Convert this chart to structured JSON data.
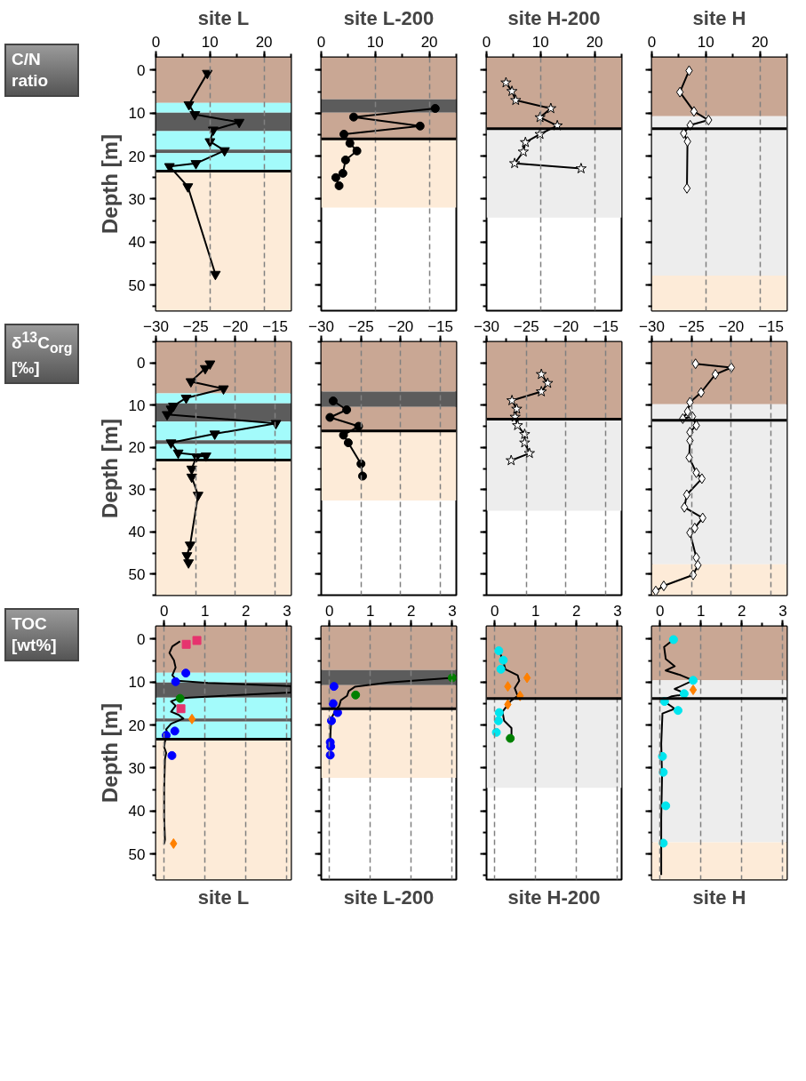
{
  "chart_data": [
    {
      "type": "line",
      "title": "site L",
      "ylabel": "Depth [m]",
      "annotations": [
        "C/N ratio"
      ],
      "xlim": [
        0,
        25
      ],
      "ylim": [
        56,
        -3
      ],
      "xticks": [
        0,
        10,
        20
      ],
      "yticks": [
        0,
        10,
        20,
        30,
        40,
        50
      ],
      "grid": "x",
      "bands": [
        {
          "axis": "y",
          "from": -3,
          "to": 7.6,
          "color": "#c9a794"
        },
        {
          "axis": "y",
          "from": 7.6,
          "to": 9.9,
          "color": "#a3fbfb"
        },
        {
          "axis": "y",
          "from": 9.9,
          "to": 14.2,
          "color": "#5c5c5c"
        },
        {
          "axis": "y",
          "from": 14.2,
          "to": 18.5,
          "color": "#a3fbfb"
        },
        {
          "axis": "y",
          "from": 18.5,
          "to": 19.3,
          "color": "#5c5c5c"
        },
        {
          "axis": "y",
          "from": 19.3,
          "to": 23.5,
          "color": "#a3fbfb"
        },
        {
          "axis": "y",
          "from": 23.5,
          "to": 56,
          "color": "#fdebd8"
        }
      ],
      "ref_lines": [
        {
          "axis": "y",
          "value": 23.5,
          "color": "#000000"
        }
      ],
      "series": [
        {
          "color": "#000000",
          "marker": "triangle",
          "x": [
            9.5,
            6.1,
            7.2,
            15.4,
            10.6,
            10.0,
            12.7,
            7.4,
            2.5,
            5.9,
            11.0
          ],
          "values": [
            0.7,
            8.0,
            10.3,
            12.1,
            13.9,
            16.6,
            18.7,
            21.7,
            22.4,
            27.1,
            47.5
          ]
        }
      ]
    },
    {
      "type": "line",
      "title": "site L-200",
      "xlim": [
        0,
        25
      ],
      "ylim": [
        56,
        -3
      ],
      "xticks": [
        0,
        10,
        20
      ],
      "yticks": [
        0,
        10,
        20,
        30,
        40,
        50
      ],
      "grid": "x",
      "tick_labels": "x",
      "bands": [
        {
          "axis": "y",
          "from": -3,
          "to": 6.8,
          "color": "#c9a794"
        },
        {
          "axis": "y",
          "from": 6.8,
          "to": 9.9,
          "color": "#5c5c5c"
        },
        {
          "axis": "y",
          "from": 9.9,
          "to": 16.0,
          "color": "#c9a794"
        },
        {
          "axis": "y",
          "from": 16.0,
          "to": 32,
          "color": "#fdebd8"
        }
      ],
      "ref_lines": [
        {
          "axis": "y",
          "value": 16.0,
          "color": "#000000"
        }
      ],
      "series": [
        {
          "color": "#000000",
          "marker": "circle",
          "x": [
            21.1,
            6.0,
            18.3,
            4.2,
            5.3,
            6.6,
            4.5,
            4.0,
            2.7,
            3.3
          ],
          "values": [
            8.9,
            10.9,
            13.0,
            14.9,
            17.0,
            18.8,
            20.9,
            24.0,
            25.0,
            26.9
          ]
        }
      ]
    },
    {
      "type": "line",
      "title": "site H-200",
      "xlim": [
        0,
        25
      ],
      "ylim": [
        56,
        -3
      ],
      "xticks": [
        0,
        10,
        20
      ],
      "yticks": [
        0,
        10,
        20,
        30,
        40,
        50
      ],
      "grid": "x",
      "tick_labels": "x",
      "bands": [
        {
          "axis": "y",
          "from": -3,
          "to": 13.6,
          "color": "#c9a794"
        },
        {
          "axis": "y",
          "from": 13.6,
          "to": 34.3,
          "color": "#ededed"
        }
      ],
      "ref_lines": [
        {
          "axis": "y",
          "value": 13.6,
          "color": "#000000"
        }
      ],
      "series": [
        {
          "color": "#000000",
          "marker": "star",
          "x": [
            3.6,
            4.7,
            5.4,
            11.9,
            9.9,
            13.1,
            9.9,
            7.2,
            6.8,
            5.2,
            17.5
          ],
          "values": [
            2.9,
            4.9,
            7.0,
            8.9,
            11.0,
            12.9,
            14.9,
            16.8,
            19.0,
            21.7,
            22.9
          ]
        }
      ]
    },
    {
      "type": "line",
      "title": "site H",
      "xlim": [
        0,
        25
      ],
      "ylim": [
        56,
        -3
      ],
      "xticks": [
        0,
        10,
        20
      ],
      "yticks": [
        0,
        10,
        20,
        30,
        40,
        50
      ],
      "grid": "x",
      "tick_labels": "x",
      "bands": [
        {
          "axis": "y",
          "from": -3,
          "to": 10.7,
          "color": "#c9a794"
        },
        {
          "axis": "y",
          "from": 10.7,
          "to": 47.8,
          "color": "#ededed"
        },
        {
          "axis": "y",
          "from": 47.8,
          "to": 56,
          "color": "#fdebd8"
        }
      ],
      "ref_lines": [
        {
          "axis": "y",
          "value": 13.6,
          "color": "#000000"
        }
      ],
      "series": [
        {
          "color": "#000000",
          "marker": "diamond",
          "x": [
            6.9,
            5.2,
            7.8,
            10.5,
            7.1,
            5.9,
            6.6,
            6.5
          ],
          "values": [
            0.1,
            5.1,
            9.6,
            11.6,
            12.8,
            14.7,
            16.6,
            27.5
          ]
        }
      ]
    },
    {
      "type": "line",
      "ylabel": "Depth [m]",
      "annotations": [
        "δ$^{13}$C$_{org}$ [‰]"
      ],
      "xlim": [
        -30,
        -13
      ],
      "ylim": [
        55,
        -5
      ],
      "xticks": [
        -30,
        -25,
        -20,
        -15
      ],
      "yticks": [
        0,
        10,
        20,
        30,
        40,
        50
      ],
      "grid": "x",
      "bands": [
        {
          "axis": "y",
          "from": -5,
          "to": 7.2,
          "color": "#c9a794"
        },
        {
          "axis": "y",
          "from": 7.2,
          "to": 9.6,
          "color": "#a3fbfb"
        },
        {
          "axis": "y",
          "from": 9.6,
          "to": 13.9,
          "color": "#5c5c5c"
        },
        {
          "axis": "y",
          "from": 13.9,
          "to": 18.3,
          "color": "#a3fbfb"
        },
        {
          "axis": "y",
          "from": 18.3,
          "to": 19.2,
          "color": "#5c5c5c"
        },
        {
          "axis": "y",
          "from": 19.2,
          "to": 23.0,
          "color": "#a3fbfb"
        },
        {
          "axis": "y",
          "from": 23.0,
          "to": 55,
          "color": "#fdebd8"
        }
      ],
      "ref_lines": [
        {
          "axis": "y",
          "value": 23.0,
          "color": "#000000"
        }
      ],
      "series": [
        {
          "color": "#000000",
          "marker": "triangle",
          "x": [
            -23.2,
            -23.8,
            -25.6,
            -21.5,
            -26.2,
            -27.8,
            -28.1,
            -28.6,
            -14.9,
            -22.6,
            -28.1,
            -27.2,
            -23.7,
            -24.9,
            -25.5,
            -25.5,
            -24.7,
            -25.7,
            -26.1,
            -25.9
          ],
          "values": [
            0.2,
            1.3,
            4.4,
            6.1,
            8.3,
            10.2,
            10.9,
            12.2,
            14.3,
            16.8,
            18.9,
            21.3,
            22.0,
            22.2,
            25.1,
            27.0,
            31.3,
            43.1,
            45.6,
            47.3
          ]
        }
      ]
    },
    {
      "type": "line",
      "xlim": [
        -30,
        -13
      ],
      "ylim": [
        55,
        -5
      ],
      "xticks": [
        -30,
        -25,
        -20,
        -15
      ],
      "yticks": [
        0,
        10,
        20,
        30,
        40,
        50
      ],
      "grid": "x",
      "tick_labels": "x",
      "bands": [
        {
          "axis": "y",
          "from": -5,
          "to": 6.8,
          "color": "#c9a794"
        },
        {
          "axis": "y",
          "from": 6.8,
          "to": 10.4,
          "color": "#5c5c5c"
        },
        {
          "axis": "y",
          "from": 10.4,
          "to": 16.1,
          "color": "#c9a794"
        },
        {
          "axis": "y",
          "from": 16.1,
          "to": 32.6,
          "color": "#fdebd8"
        }
      ],
      "ref_lines": [
        {
          "axis": "y",
          "value": 16.1,
          "color": "#000000"
        }
      ],
      "series": [
        {
          "color": "#000000",
          "marker": "circle",
          "x": [
            -28.5,
            -26.8,
            -28.9,
            -25.3,
            -27.2,
            -26.6,
            -25.0,
            -24.8
          ],
          "values": [
            9.0,
            11.1,
            12.9,
            15.0,
            17.1,
            18.9,
            23.9,
            26.8
          ]
        }
      ]
    },
    {
      "type": "line",
      "xlim": [
        -30,
        -13
      ],
      "ylim": [
        55,
        -5
      ],
      "xticks": [
        -30,
        -25,
        -20,
        -15
      ],
      "yticks": [
        0,
        10,
        20,
        30,
        40,
        50
      ],
      "grid": "x",
      "tick_labels": "x",
      "bands": [
        {
          "axis": "y",
          "from": -5,
          "to": 13.3,
          "color": "#c9a794"
        },
        {
          "axis": "y",
          "from": 13.3,
          "to": 35,
          "color": "#ededed"
        }
      ],
      "ref_lines": [
        {
          "axis": "y",
          "value": 13.3,
          "color": "#000000"
        }
      ],
      "series": [
        {
          "color": "#000000",
          "marker": "star",
          "x": [
            -23.1,
            -22.3,
            -23.1,
            -26.8,
            -26.2,
            -26.4,
            -26.1,
            -25.2,
            -25.2,
            -24.6,
            -26.9
          ],
          "values": [
            2.7,
            4.8,
            6.8,
            8.9,
            10.9,
            12.8,
            14.8,
            16.9,
            18.9,
            21.4,
            23.1
          ]
        }
      ]
    },
    {
      "type": "line",
      "xlim": [
        -30,
        -13
      ],
      "ylim": [
        55,
        -5
      ],
      "xticks": [
        -30,
        -25,
        -20,
        -15
      ],
      "yticks": [
        0,
        10,
        20,
        30,
        40,
        50
      ],
      "grid": "x",
      "tick_labels": "x",
      "bands": [
        {
          "axis": "y",
          "from": -5,
          "to": 9.8,
          "color": "#c9a794"
        },
        {
          "axis": "y",
          "from": 9.8,
          "to": 47.7,
          "color": "#ededed"
        },
        {
          "axis": "y",
          "from": 47.7,
          "to": 55,
          "color": "#fdebd8"
        }
      ],
      "ref_lines": [
        {
          "axis": "y",
          "value": 13.6,
          "color": "#000000"
        }
      ],
      "series": [
        {
          "color": "#000000",
          "marker": "diamond",
          "x": [
            -24.5,
            -20.0,
            -22.0,
            -23.8,
            -25.2,
            -25.5,
            -26.1,
            -24.9,
            -24.4,
            -25.2,
            -25.2,
            -25.3,
            -24.4,
            -23.7,
            -25.6,
            -25.9,
            -23.6,
            -24.6,
            -25.2,
            -24.4,
            -24.2,
            -24.8,
            -28.5,
            -29.5
          ],
          "values": [
            0.2,
            1.1,
            2.7,
            7.0,
            9.3,
            11.5,
            13.2,
            12.7,
            14.8,
            16.4,
            18.4,
            22.4,
            26.0,
            27.4,
            31.2,
            34.2,
            36.7,
            39.1,
            40.2,
            46.1,
            47.9,
            50.2,
            52.8,
            54.0
          ]
        }
      ]
    },
    {
      "type": "line",
      "ylabel": "Depth [m]",
      "xlabel": "site L",
      "annotations": [
        "TOC [wt%]"
      ],
      "xlim": [
        -0.2,
        3.1
      ],
      "ylim": [
        56,
        -3
      ],
      "xticks": [
        0,
        1,
        2,
        3
      ],
      "yticks": [
        0,
        10,
        20,
        30,
        40,
        50
      ],
      "grid": "x",
      "bands": [
        {
          "axis": "y",
          "from": -3,
          "to": 7.8,
          "color": "#c9a794"
        },
        {
          "axis": "y",
          "from": 7.8,
          "to": 10.1,
          "color": "#a3fbfb"
        },
        {
          "axis": "y",
          "from": 10.1,
          "to": 13.6,
          "color": "#5c5c5c"
        },
        {
          "axis": "y",
          "from": 13.6,
          "to": 18.5,
          "color": "#a3fbfb"
        },
        {
          "axis": "y",
          "from": 18.5,
          "to": 19.2,
          "color": "#5c5c5c"
        },
        {
          "axis": "y",
          "from": 19.2,
          "to": 23.3,
          "color": "#a3fbfb"
        },
        {
          "axis": "y",
          "from": 23.3,
          "to": 56,
          "color": "#fdebd8"
        }
      ],
      "ref_lines": [
        {
          "axis": "y",
          "value": 23.3,
          "color": "#000000"
        }
      ],
      "series": [
        {
          "color": "#000000",
          "x": [
            0.39,
            0.2,
            0.13,
            0.24,
            0.28,
            0.2,
            0.32,
            1.07,
            3.1,
            3.1,
            0.62,
            0.35,
            0.17,
            0.28,
            0.17,
            0.35,
            0.47,
            0.17,
            0.05,
            0.09,
            0.02,
            0.0,
            0.05,
            0.02,
            0.0,
            0.0,
            0.02,
            0.0
          ],
          "values": [
            0.5,
            1.7,
            3.2,
            4.9,
            6.6,
            8.4,
            9.7,
            10.2,
            10.9,
            12.4,
            13.6,
            13.8,
            14.5,
            15.5,
            16.9,
            17.6,
            18.5,
            19.7,
            21.0,
            22.4,
            23.8,
            25.1,
            26.5,
            27.9,
            34.7,
            41.5,
            46.7,
            47.7
          ]
        },
        {
          "type": "scatter",
          "color": "#e6336e",
          "marker": "square",
          "x": [
            0.54,
            0.8,
            0.41
          ],
          "values": [
            1.2,
            0.3,
            16.2
          ]
        },
        {
          "type": "scatter",
          "color": "#0000ff",
          "marker": "circle",
          "x": [
            0.53,
            0.28,
            0.26,
            0.05,
            0.19
          ],
          "values": [
            7.9,
            9.9,
            21.4,
            22.4,
            27.1
          ]
        },
        {
          "type": "scatter",
          "color": "#008000",
          "marker": "circle",
          "x": [
            0.39
          ],
          "values": [
            13.8
          ]
        },
        {
          "type": "scatter",
          "color": "#ff8000",
          "marker": "diamond",
          "x": [
            0.68,
            0.23
          ],
          "values": [
            18.6,
            47.6
          ]
        }
      ]
    },
    {
      "type": "line",
      "xlabel": "site L-200",
      "xlim": [
        -0.2,
        3.1
      ],
      "ylim": [
        56,
        -3
      ],
      "xticks": [
        0,
        1,
        2,
        3
      ],
      "yticks": [
        0,
        10,
        20,
        30,
        40,
        50
      ],
      "grid": "x",
      "tick_labels": "x",
      "bands": [
        {
          "axis": "y",
          "from": -3,
          "to": 7.2,
          "color": "#c9a794"
        },
        {
          "axis": "y",
          "from": 7.2,
          "to": 10.7,
          "color": "#5c5c5c"
        },
        {
          "axis": "y",
          "from": 10.7,
          "to": 16.2,
          "color": "#c9a794"
        },
        {
          "axis": "y",
          "from": 16.2,
          "to": 32.3,
          "color": "#fdebd8"
        }
      ],
      "ref_lines": [
        {
          "axis": "y",
          "value": 16.2,
          "color": "#000000"
        }
      ],
      "series": [
        {
          "color": "#000000",
          "x": [
            3.0,
            1.44,
            0.62,
            0.47,
            0.43,
            0.28,
            0.24,
            0.15,
            0.05,
            0.03,
            0.02
          ],
          "values": [
            9.0,
            10.1,
            11.1,
            12.1,
            13.2,
            14.2,
            15.5,
            16.6,
            18.3,
            21.0,
            23.8
          ]
        },
        {
          "type": "scatter",
          "color": "#0000ff",
          "marker": "circle",
          "x": [
            0.11,
            0.09,
            0.2,
            0.05,
            0.02,
            0.03,
            0.02
          ],
          "values": [
            11.0,
            15.0,
            17.1,
            19.0,
            24.0,
            25.0,
            27.0
          ]
        },
        {
          "type": "scatter",
          "color": "#008000",
          "marker": "circle",
          "x": [
            3.0,
            0.64
          ],
          "values": [
            9.0,
            13.0
          ]
        }
      ]
    },
    {
      "type": "line",
      "xlabel": "site H-200",
      "xlim": [
        -0.2,
        3.1
      ],
      "ylim": [
        56,
        -3
      ],
      "xticks": [
        0,
        1,
        2,
        3
      ],
      "yticks": [
        0,
        10,
        20,
        30,
        40,
        50
      ],
      "grid": "x",
      "tick_labels": "x",
      "bands": [
        {
          "axis": "y",
          "from": -3,
          "to": 13.8,
          "color": "#c9a794"
        },
        {
          "axis": "y",
          "from": 13.8,
          "to": 34.6,
          "color": "#ededed"
        }
      ],
      "ref_lines": [
        {
          "axis": "y",
          "value": 13.8,
          "color": "#000000"
        }
      ],
      "series": [
        {
          "color": "#000000",
          "x": [
            0.1,
            0.19,
            0.26,
            0.56,
            0.6,
            0.49,
            0.56,
            0.38,
            0.19,
            0.23,
            0.41,
            0.41,
            0.38
          ],
          "values": [
            2.7,
            4.6,
            7.0,
            8.4,
            9.7,
            11.4,
            13.2,
            14.5,
            16.9,
            19.0,
            20.7,
            22.4,
            23.1
          ]
        },
        {
          "type": "scatter",
          "color": "#00e5ee",
          "marker": "circle",
          "x": [
            0.1,
            0.21,
            0.15,
            0.11,
            0.09,
            0.04
          ],
          "values": [
            2.7,
            4.9,
            7.0,
            17.1,
            19.0,
            21.7
          ]
        },
        {
          "type": "scatter",
          "color": "#ff8000",
          "marker": "diamond",
          "x": [
            0.79,
            0.32,
            0.62,
            0.32
          ],
          "values": [
            9.0,
            11.0,
            13.2,
            15.2
          ]
        },
        {
          "type": "scatter",
          "color": "#008000",
          "marker": "circle",
          "x": [
            0.38
          ],
          "values": [
            23.1
          ]
        }
      ]
    },
    {
      "type": "line",
      "xlabel": "site H",
      "xlim": [
        -0.2,
        3.1
      ],
      "ylim": [
        56,
        -3
      ],
      "xticks": [
        0,
        1,
        2,
        3
      ],
      "yticks": [
        0,
        10,
        20,
        30,
        40,
        50
      ],
      "grid": "x",
      "tick_labels": "x",
      "bands": [
        {
          "axis": "y",
          "from": -3,
          "to": 9.6,
          "color": "#c9a794"
        },
        {
          "axis": "y",
          "from": 9.6,
          "to": 47.3,
          "color": "#ededed"
        },
        {
          "axis": "y",
          "from": 47.3,
          "to": 56,
          "color": "#fdebd8"
        }
      ],
      "ref_lines": [
        {
          "axis": "y",
          "value": 13.8,
          "color": "#000000"
        }
      ],
      "series": [
        {
          "color": "#000000",
          "x": [
            0.33,
            0.1,
            0.14,
            0.36,
            0.14,
            0.51,
            0.81,
            0.36,
            0.66,
            0.29,
            0.06,
            0.36,
            0.06,
            0.03,
            0.05,
            0.03,
            0.03
          ],
          "values": [
            0.1,
            1.8,
            4.6,
            6.3,
            7.3,
            8.4,
            9.6,
            11.6,
            12.8,
            13.3,
            14.2,
            16.2,
            17.3,
            24.4,
            32.0,
            41.6,
            54.9
          ]
        },
        {
          "type": "scatter",
          "color": "#00e5ee",
          "marker": "circle",
          "x": [
            0.33,
            0.81,
            0.59,
            0.11,
            0.44,
            0.06,
            0.08,
            0.14,
            0.08
          ],
          "values": [
            0.1,
            9.6,
            12.7,
            14.5,
            16.6,
            27.3,
            31.0,
            38.8,
            47.5
          ]
        },
        {
          "type": "scatter",
          "color": "#ff8000",
          "marker": "diamond",
          "x": [
            0.81
          ],
          "values": [
            11.8
          ]
        }
      ]
    }
  ]
}
